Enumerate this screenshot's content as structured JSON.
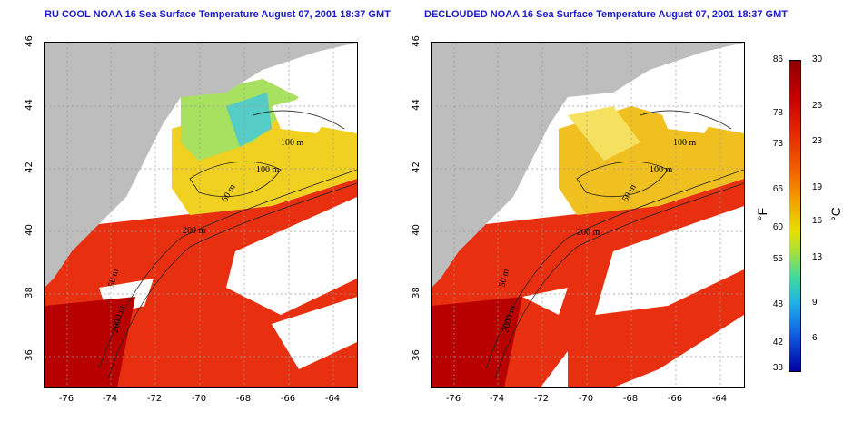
{
  "panels": [
    {
      "title": "RU COOL NOAA 16 Sea Surface Temperature August 07, 2001 18:37 GMT"
    },
    {
      "title": "DECLOUDED NOAA 16 Sea Surface Temperature August 07, 2001 18:37 GMT"
    }
  ],
  "axes": {
    "lat_ticks": [
      "46",
      "44",
      "42",
      "40",
      "38",
      "36"
    ],
    "lon_ticks": [
      "-76",
      "-74",
      "-72",
      "-70",
      "-68",
      "-66",
      "-64"
    ]
  },
  "contour_labels": [
    "100 m",
    "100 m",
    "50 m",
    "200 m",
    "50 m",
    "2000 m"
  ],
  "colorbar": {
    "fahrenheit_label": "°F",
    "celsius_label": "°C",
    "fahrenheit_ticks": [
      "86",
      "78",
      "73",
      "66",
      "60",
      "55",
      "48",
      "42",
      "38"
    ],
    "celsius_ticks": [
      "30",
      "26",
      "23",
      "19",
      "16",
      "13",
      "9",
      "6"
    ]
  },
  "colors": {
    "land": "#bdbdbd",
    "warm_sst": "#e83010",
    "gulf_stream": "#b80000",
    "cool_shelf": "#f0d020",
    "cold_water": "#40c8e0",
    "cloud": "#ffffff",
    "title": "#1a1ac8"
  }
}
